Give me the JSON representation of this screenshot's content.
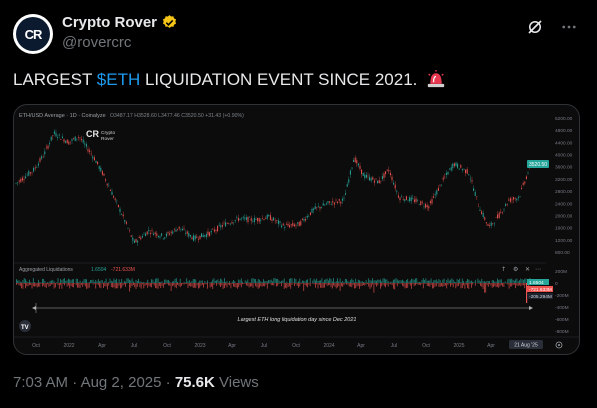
{
  "author": {
    "display_name": "Crypto Rover",
    "handle": "@rovercrc",
    "avatar_text": "CR"
  },
  "tweet": {
    "text_before": "LARGEST ",
    "cashtag": "$ETH",
    "text_after": " LIQUIDATION EVENT SINCE 2021.",
    "emoji": "siren"
  },
  "chart": {
    "header": "ETH/USD Average · 1D · Coinalyze",
    "ohlc": "O3487.17 H3528.60 L3477.46 C3520.50 +31.43 (+0.90%)",
    "watermark_line1": "Crypto",
    "watermark_line2": "Rover",
    "price_ticks": [
      "5200.00",
      "4800.00",
      "4400.00",
      "4000.00",
      "3600.00",
      "3200.00",
      "2800.00",
      "2400.00",
      "2000.00",
      "1600.00",
      "1200.00",
      "800.00"
    ],
    "price_label": "3520.50",
    "indicator_title": "Aggregated Liquidations",
    "indicator_val1": "1.6504",
    "indicator_val2": "-721.633M",
    "liq_ticks": [
      "200M",
      "0",
      "-200M",
      "-400M",
      "-600M",
      "-800M"
    ],
    "liq_label1": "1.6504",
    "liq_label2": "-721.633M",
    "liq_label3": "-205.294M",
    "annotation": "Largest ETH long liquidation day since Dec 2021",
    "x_ticks": [
      "Oct",
      "2022",
      "Apr",
      "Jul",
      "Oct",
      "2023",
      "Apr",
      "Jul",
      "Oct",
      "2024",
      "Apr",
      "Jul",
      "Oct",
      "2025",
      "Apr"
    ],
    "date_label": "21 Aug '25",
    "colors": {
      "up": "#26a69a",
      "down": "#ef5350",
      "bg": "#0c0c0c"
    }
  },
  "footer": {
    "time": "7:03 AM",
    "sep": " · ",
    "date": "Aug 2, 2025",
    "sep2": " · ",
    "views_count": "75.6K",
    "views_label": " Views"
  }
}
